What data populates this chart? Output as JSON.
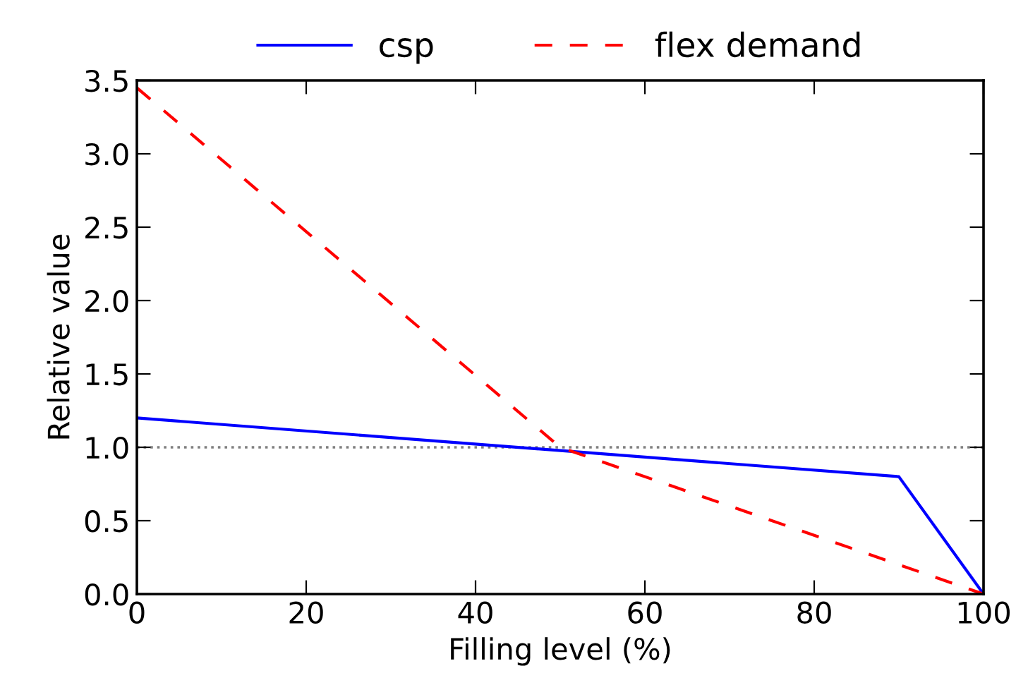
{
  "chart_data": {
    "type": "line",
    "xlabel": "Filling level (%)",
    "ylabel": "Relative value",
    "series": [
      {
        "name": "csp",
        "color": "#0000ff",
        "x": [
          0,
          90,
          100
        ],
        "values": [
          1.2,
          0.8,
          0.0
        ],
        "line_style": "solid"
      },
      {
        "name": "flex demand",
        "color": "#ff0000",
        "x": [
          0,
          50,
          100
        ],
        "values": [
          3.45,
          1.0,
          0.0
        ],
        "line_style": "dashed"
      }
    ],
    "xlim": [
      0,
      100
    ],
    "xticks": [
      0,
      20,
      40,
      60,
      80,
      100
    ],
    "ylim": [
      0,
      3.5
    ],
    "yticks": [
      {
        "value": 0,
        "label": "0.0"
      },
      {
        "value": 0.5,
        "label": "0.5"
      },
      {
        "value": 1,
        "label": "1.0"
      },
      {
        "value": 1.5,
        "label": "1.5"
      },
      {
        "value": 2,
        "label": "2.0"
      },
      {
        "value": 2.5,
        "label": "2.5"
      },
      {
        "value": 3,
        "label": "3.0"
      },
      {
        "value": 3.5,
        "label": "3.5"
      }
    ],
    "ref_lines": [
      {
        "axis": "y",
        "value": 1.0,
        "color": "#808080",
        "line_style": "dotted"
      }
    ],
    "legend": "top",
    "grid": false
  }
}
